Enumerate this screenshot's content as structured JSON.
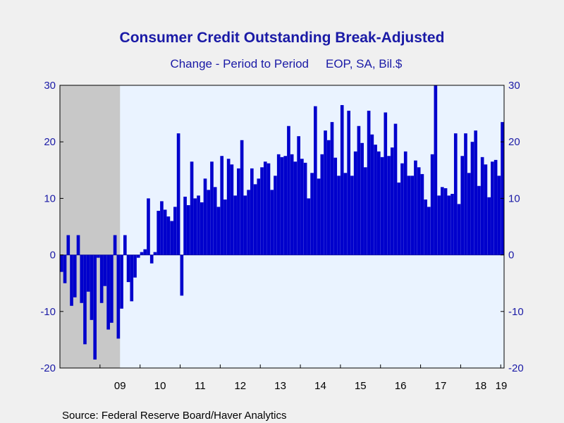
{
  "chart_data": {
    "type": "bar",
    "title": "Consumer Credit Outstanding Break-Adjusted",
    "subtitle_left": "Change - Period to Period",
    "subtitle_right": "EOP, SA, Bil.$",
    "source": "Source:  Federal Reserve Board/Haver Analytics",
    "ylim": [
      -20,
      30
    ],
    "yticks": [
      "30",
      "20",
      "10",
      "0",
      "-10",
      "-20"
    ],
    "ytick_values": [
      30,
      20,
      10,
      0,
      -10,
      -20
    ],
    "x_tick_labels": [
      "09",
      "10",
      "11",
      "12",
      "13",
      "14",
      "15",
      "16",
      "17",
      "18",
      "19"
    ],
    "x_start": "2008-01",
    "recession": [
      "2008-01",
      "2009-06"
    ],
    "bar_color": "#0000cc",
    "recession_color": "#c8c8c8",
    "plot_background": "#eaf3ff",
    "values": [
      -3,
      -5,
      3.5,
      -9,
      -7.5,
      3.5,
      -8.5,
      -15.8,
      -6.5,
      -11.5,
      -18.5,
      -0.5,
      -8.5,
      -5.5,
      -13.2,
      -12,
      3.5,
      -14.8,
      -9.5,
      3.5,
      -4.8,
      -8.2,
      -4,
      -0.5,
      0.5,
      1,
      10,
      -1.5,
      0.5,
      7.8,
      9.5,
      8,
      6.8,
      6,
      8.5,
      21.5,
      -7.2,
      10.3,
      8.8,
      16.5,
      10,
      10.5,
      9.3,
      13.5,
      11.5,
      16.5,
      12,
      8.5,
      17.5,
      9.8,
      17,
      16,
      10.5,
      15.3,
      20.3,
      10.5,
      11.5,
      15.3,
      12.5,
      13.5,
      15.5,
      16.5,
      16.2,
      11.5,
      14,
      17.8,
      17.3,
      17.5,
      22.8,
      17.8,
      16.5,
      21,
      17,
      16.3,
      10,
      14.5,
      26.3,
      13.5,
      17.8,
      22,
      20.3,
      23.5,
      17.2,
      14,
      26.5,
      14.5,
      25.5,
      14,
      18.3,
      22.8,
      19.8,
      15.5,
      25.5,
      21.3,
      19.5,
      18.3,
      17.3,
      25.2,
      17.5,
      19,
      23.2,
      12.8,
      16.2,
      18.3,
      14,
      14,
      16.7,
      15.5,
      14.3,
      9.8,
      8.5,
      17.8,
      30,
      10.5,
      12,
      11.8,
      10.5,
      10.8,
      21.5,
      9,
      17.5,
      21.5,
      14.5,
      20,
      22,
      12.2,
      17.3,
      16,
      10.2,
      16.5,
      16.8,
      14,
      23.5
    ]
  }
}
